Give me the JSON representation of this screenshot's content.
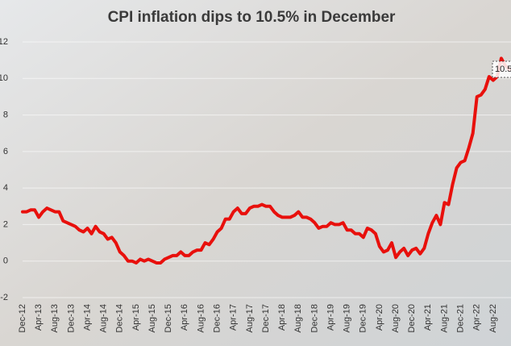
{
  "chart_data": {
    "type": "line",
    "title": "CPI inflation dips to 10.5% in December",
    "annotation": "10.5",
    "categories": [
      "Dec-12",
      null,
      null,
      null,
      "Apr-13",
      null,
      null,
      null,
      "Aug-13",
      null,
      null,
      null,
      "Dec-13",
      null,
      null,
      null,
      "Apr-14",
      null,
      null,
      null,
      "Aug-14",
      null,
      null,
      null,
      "Dec-14",
      null,
      null,
      null,
      "Apr-15",
      null,
      null,
      null,
      "Aug-15",
      null,
      null,
      null,
      "Dec-15",
      null,
      null,
      null,
      "Apr-16",
      null,
      null,
      null,
      "Aug-16",
      null,
      null,
      null,
      "Dec-16",
      null,
      null,
      null,
      "Apr-17",
      null,
      null,
      null,
      "Aug-17",
      null,
      null,
      null,
      "Dec-17",
      null,
      null,
      null,
      "Apr-18",
      null,
      null,
      null,
      "Aug-18",
      null,
      null,
      null,
      "Dec-18",
      null,
      null,
      null,
      "Apr-19",
      null,
      null,
      null,
      "Aug-19",
      null,
      null,
      null,
      "Dec-19",
      null,
      null,
      null,
      "Apr-20",
      null,
      null,
      null,
      "Aug-20",
      null,
      null,
      null,
      "Dec-20",
      null,
      null,
      null,
      "Apr-21",
      null,
      null,
      null,
      "Aug-21",
      null,
      null,
      null,
      "Dec-21",
      null,
      null,
      null,
      "Apr-22",
      null,
      null,
      null,
      "Aug-22",
      null,
      null,
      null,
      null
    ],
    "series": [
      {
        "name": "CPI",
        "color": "#e8100c",
        "values": [
          2.7,
          2.7,
          2.8,
          2.8,
          2.4,
          2.7,
          2.9,
          2.8,
          2.7,
          2.7,
          2.2,
          2.1,
          2.0,
          1.9,
          1.7,
          1.6,
          1.8,
          1.5,
          1.9,
          1.6,
          1.5,
          1.2,
          1.3,
          1.0,
          0.5,
          0.3,
          0.0,
          0.0,
          -0.1,
          0.1,
          0.0,
          0.1,
          0.0,
          -0.1,
          -0.1,
          0.1,
          0.2,
          0.3,
          0.3,
          0.5,
          0.3,
          0.3,
          0.5,
          0.6,
          0.6,
          1.0,
          0.9,
          1.2,
          1.6,
          1.8,
          2.3,
          2.3,
          2.7,
          2.9,
          2.6,
          2.6,
          2.9,
          3.0,
          3.0,
          3.1,
          3.0,
          3.0,
          2.7,
          2.5,
          2.4,
          2.4,
          2.4,
          2.5,
          2.7,
          2.4,
          2.4,
          2.3,
          2.1,
          1.8,
          1.9,
          1.9,
          2.1,
          2.0,
          2.0,
          2.1,
          1.7,
          1.7,
          1.5,
          1.5,
          1.3,
          1.8,
          1.7,
          1.5,
          0.8,
          0.5,
          0.6,
          1.0,
          0.2,
          0.5,
          0.7,
          0.3,
          0.6,
          0.7,
          0.4,
          0.7,
          1.5,
          2.1,
          2.5,
          2.0,
          3.2,
          3.1,
          4.2,
          5.1,
          5.4,
          5.5,
          6.2,
          7.0,
          9.0,
          9.1,
          9.4,
          10.1,
          9.9,
          10.1,
          11.1,
          10.7,
          10.5
        ]
      }
    ],
    "ylim": [
      -2,
      12
    ],
    "yticks": [
      -2,
      0,
      2,
      4,
      6,
      8,
      10,
      12
    ],
    "grid": true
  }
}
